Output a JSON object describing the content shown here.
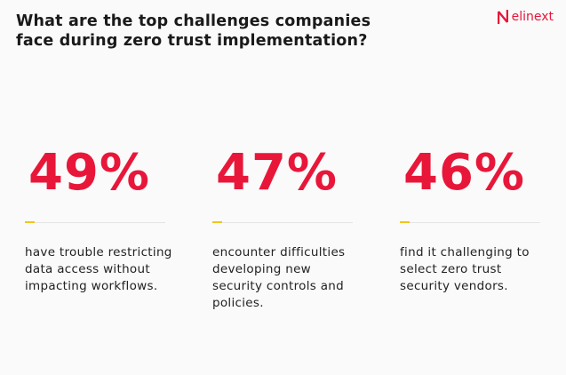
{
  "header": {
    "title_lines": [
      "What are the top challenges companies",
      "face during zero trust implementation?"
    ],
    "logo": "elinext"
  },
  "stats": [
    {
      "value": "49%",
      "description_lines": [
        "have trouble restricting",
        "data access without",
        "impacting workflows."
      ]
    },
    {
      "value": "47%",
      "description_lines": [
        "encounter difficulties",
        "developing new",
        "security controls and",
        "policies."
      ]
    },
    {
      "value": "46%",
      "description_lines": [
        "find it challenging to",
        "select zero trust",
        "security vendors."
      ]
    }
  ]
}
